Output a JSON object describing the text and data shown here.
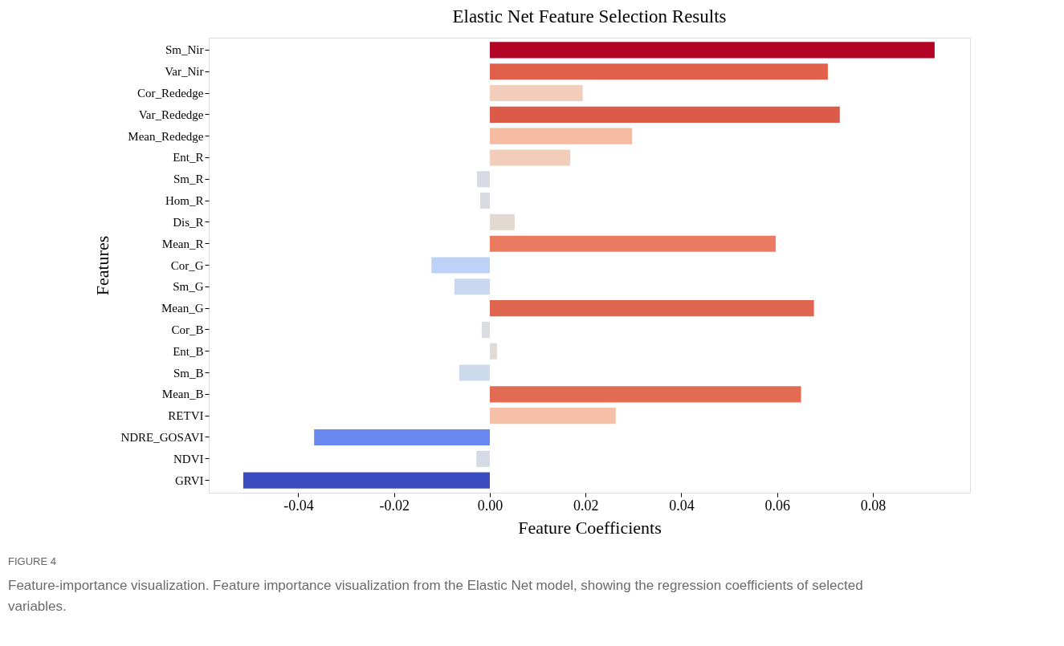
{
  "chart_data": {
    "type": "bar",
    "orientation": "horizontal",
    "title": "Elastic Net Feature Selection Results",
    "xlabel": "Feature Coefficients",
    "ylabel": "Features",
    "categories": [
      "Sm_Nir",
      "Var_Nir",
      "Cor_Rededge",
      "Var_Rededge",
      "Mean_Rededge",
      "Ent_R",
      "Sm_R",
      "Hom_R",
      "Dis_R",
      "Mean_R",
      "Cor_G",
      "Sm_G",
      "Mean_G",
      "Cor_B",
      "Ent_B",
      "Sm_B",
      "Mean_B",
      "RETVI",
      "NDRE_GOSAVI",
      "NDVI",
      "GRVI"
    ],
    "values": [
      0.0929,
      0.0706,
      0.0194,
      0.0731,
      0.0297,
      0.0168,
      -0.0027,
      -0.002,
      0.0052,
      0.0597,
      -0.0122,
      -0.0074,
      0.0677,
      -0.0017,
      0.0015,
      -0.0064,
      0.065,
      0.0263,
      -0.0367,
      -0.0028,
      -0.0515
    ],
    "colors": [
      "#b40426",
      "#e0604c",
      "#f1cdba",
      "#dc5a48",
      "#f6bca1",
      "#f1cdba",
      "#d5dbe5",
      "#d8dce2",
      "#e3d9d3",
      "#ea7b60",
      "#bcd2f7",
      "#c9d7f0",
      "#e0654f",
      "#d9dce1",
      "#dfdbd9",
      "#cdd9ec",
      "#e36b53",
      "#f5c0a7",
      "#6788ee",
      "#d5dbe5",
      "#3b4cc0"
    ],
    "xlim": [
      -0.0587,
      0.1003
    ],
    "xticks": [
      {
        "value": -0.04,
        "label": "-0.04"
      },
      {
        "value": -0.02,
        "label": "-0.02"
      },
      {
        "value": 0,
        "label": "0.00"
      },
      {
        "value": 0.02,
        "label": "0.02"
      },
      {
        "value": 0.04,
        "label": "0.04"
      },
      {
        "value": 0.06,
        "label": "0.06"
      },
      {
        "value": 0.08,
        "label": "0.08"
      }
    ],
    "grid": false,
    "annotations": [
      "FIGURE 4",
      "Feature-importance visualization. Feature importance visualization from the Elastic Net model, showing the regression coefficients of selected variables."
    ]
  }
}
